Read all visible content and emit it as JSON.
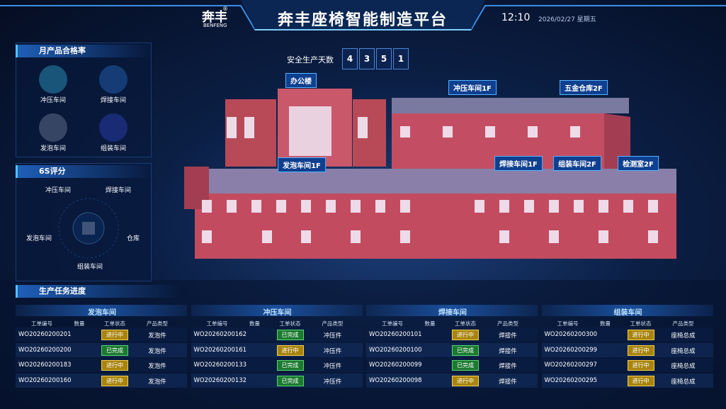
{
  "header": {
    "logo": "奔丰",
    "logo_mark": "®",
    "logo_sub": "BENFENG",
    "title": "奔丰座椅智能制造平台",
    "time": "12:10",
    "date": "2026/02/27 星期五"
  },
  "quality_panel": {
    "title": "月产品合格率",
    "items": [
      "冲压车间",
      "焊接车间",
      "发泡车间",
      "组装车间"
    ]
  },
  "score_panel": {
    "title": "6S评分",
    "nodes": [
      "冲压车间",
      "焊接车间",
      "发泡车间",
      "仓库",
      "组装车间"
    ]
  },
  "safety": {
    "label": "安全生产天数",
    "digits": [
      4,
      3,
      5,
      1
    ]
  },
  "buildings": [
    "办公楼",
    "冲压车间1F",
    "五金仓库2F",
    "发泡车间1F",
    "焊接车间1F",
    "组装车间2F",
    "检测室2F"
  ],
  "tasks": {
    "title": "生产任务进度",
    "columns": [
      "工单编号",
      "数量",
      "工单状态",
      "产品类型"
    ],
    "tables": [
      {
        "workshop": "发泡车间",
        "rows": [
          [
            "WO20260200201",
            "进行中",
            "发泡件"
          ],
          [
            "WO20260200200",
            "已完成",
            "发泡件"
          ],
          [
            "WO20260200183",
            "进行中",
            "发泡件"
          ],
          [
            "WO20260200160",
            "进行中",
            "发泡件"
          ]
        ]
      },
      {
        "workshop": "冲压车间",
        "rows": [
          [
            "WO20260200162",
            "已完成",
            "冲压件"
          ],
          [
            "WO20260200161",
            "进行中",
            "冲压件"
          ],
          [
            "WO20260200133",
            "已完成",
            "冲压件"
          ],
          [
            "WO20260200132",
            "已完成",
            "冲压件"
          ]
        ]
      },
      {
        "workshop": "焊接车间",
        "rows": [
          [
            "WO20260200101",
            "进行中",
            "焊接件"
          ],
          [
            "WO20260200100",
            "已完成",
            "焊接件"
          ],
          [
            "WO20260200099",
            "已完成",
            "焊接件"
          ],
          [
            "WO20260200098",
            "进行中",
            "焊接件"
          ]
        ]
      },
      {
        "workshop": "组装车间",
        "rows": [
          [
            "WO20260200300",
            "进行中",
            "座椅总成"
          ],
          [
            "WO20260200299",
            "进行中",
            "座椅总成"
          ],
          [
            "WO20260200297",
            "进行中",
            "座椅总成"
          ],
          [
            "WO20260200295",
            "进行中",
            "座椅总成"
          ]
        ]
      }
    ]
  }
}
